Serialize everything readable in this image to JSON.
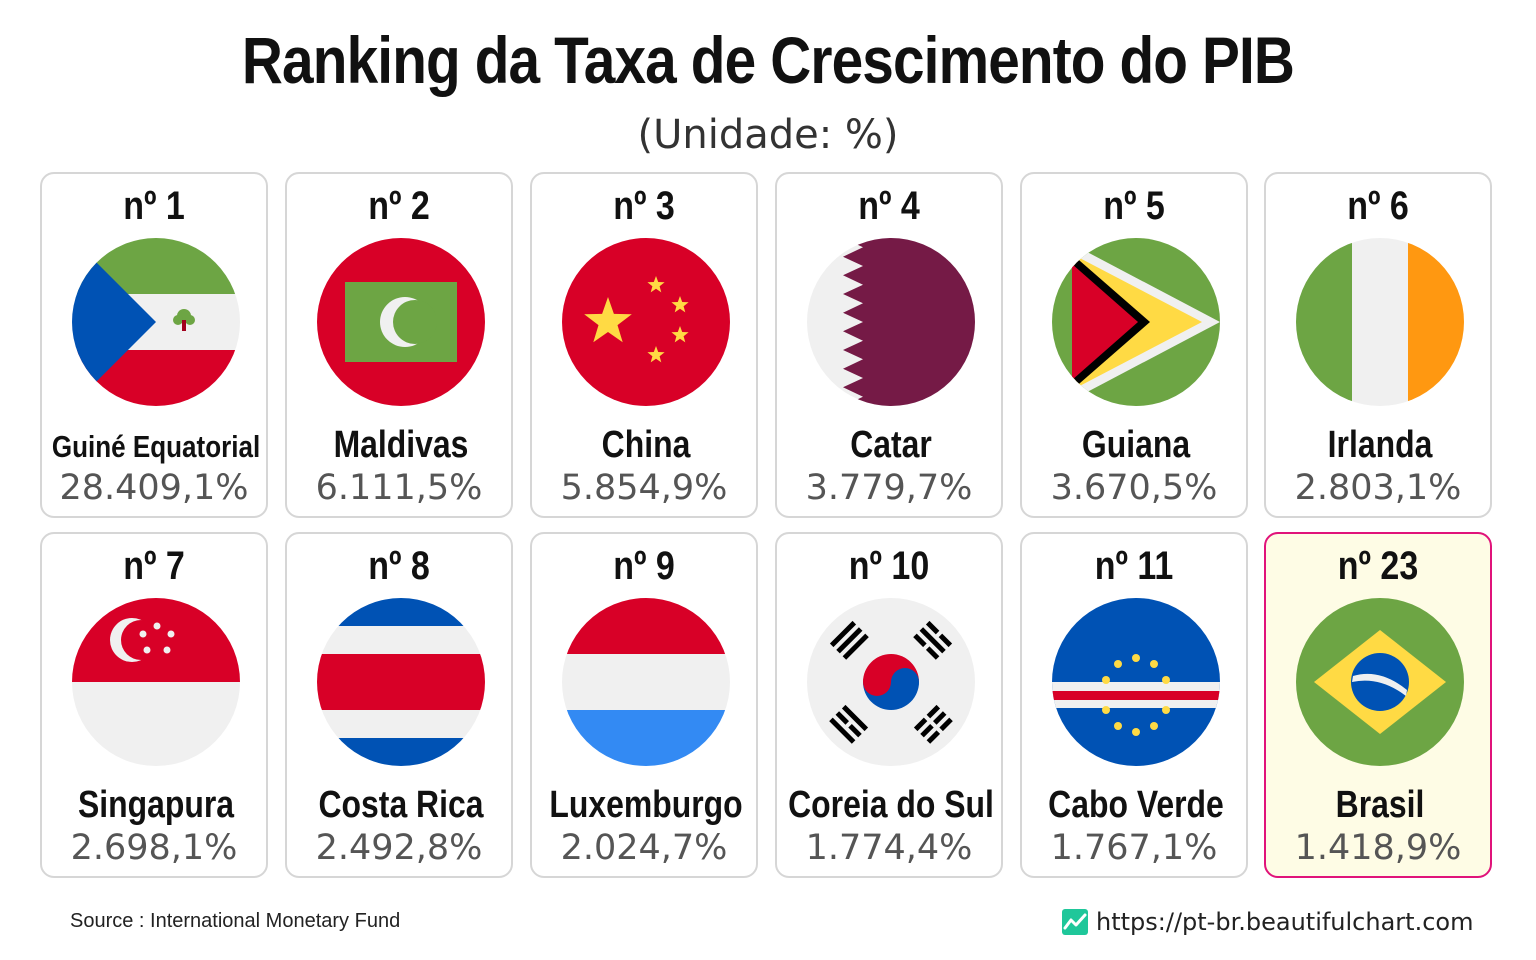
{
  "title": "Ranking da Taxa de Crescimento do PIB",
  "subtitle": "(Unidade: %)",
  "source": "Source : International Monetary Fund",
  "website": "https://pt-br.beautifulchart.com",
  "colors": {
    "highlight_border": "#e0137a",
    "highlight_bg": "#fefce5",
    "card_border": "#d6d6d6",
    "brand_icon": "#1fc79a"
  },
  "chart_data": {
    "type": "table",
    "title": "Ranking da Taxa de Crescimento do PIB",
    "subtitle": "(Unidade: %)",
    "columns": [
      "rank",
      "country",
      "value"
    ],
    "rows": [
      {
        "rank": "nº 1",
        "country": "Guiné Equatorial",
        "value": "28.409,1%",
        "flag": "equatorial-guinea-flag-icon"
      },
      {
        "rank": "nº 2",
        "country": "Maldivas",
        "value": "6.111,5%",
        "flag": "maldives-flag-icon"
      },
      {
        "rank": "nº 3",
        "country": "China",
        "value": "5.854,9%",
        "flag": "china-flag-icon"
      },
      {
        "rank": "nº 4",
        "country": "Catar",
        "value": "3.779,7%",
        "flag": "qatar-flag-icon"
      },
      {
        "rank": "nº 5",
        "country": "Guiana",
        "value": "3.670,5%",
        "flag": "guyana-flag-icon"
      },
      {
        "rank": "nº 6",
        "country": "Irlanda",
        "value": "2.803,1%",
        "flag": "ireland-flag-icon"
      },
      {
        "rank": "nº 7",
        "country": "Singapura",
        "value": "2.698,1%",
        "flag": "singapore-flag-icon"
      },
      {
        "rank": "nº 8",
        "country": "Costa Rica",
        "value": "2.492,8%",
        "flag": "costa-rica-flag-icon"
      },
      {
        "rank": "nº 9",
        "country": "Luxemburgo",
        "value": "2.024,7%",
        "flag": "luxembourg-flag-icon"
      },
      {
        "rank": "nº 10",
        "country": "Coreia do Sul",
        "value": "1.774,4%",
        "flag": "south-korea-flag-icon"
      },
      {
        "rank": "nº 11",
        "country": "Cabo Verde",
        "value": "1.767,1%",
        "flag": "cape-verde-flag-icon"
      },
      {
        "rank": "nº 23",
        "country": "Brasil",
        "value": "1.418,9%",
        "flag": "brazil-flag-icon",
        "highlight": true
      }
    ]
  }
}
